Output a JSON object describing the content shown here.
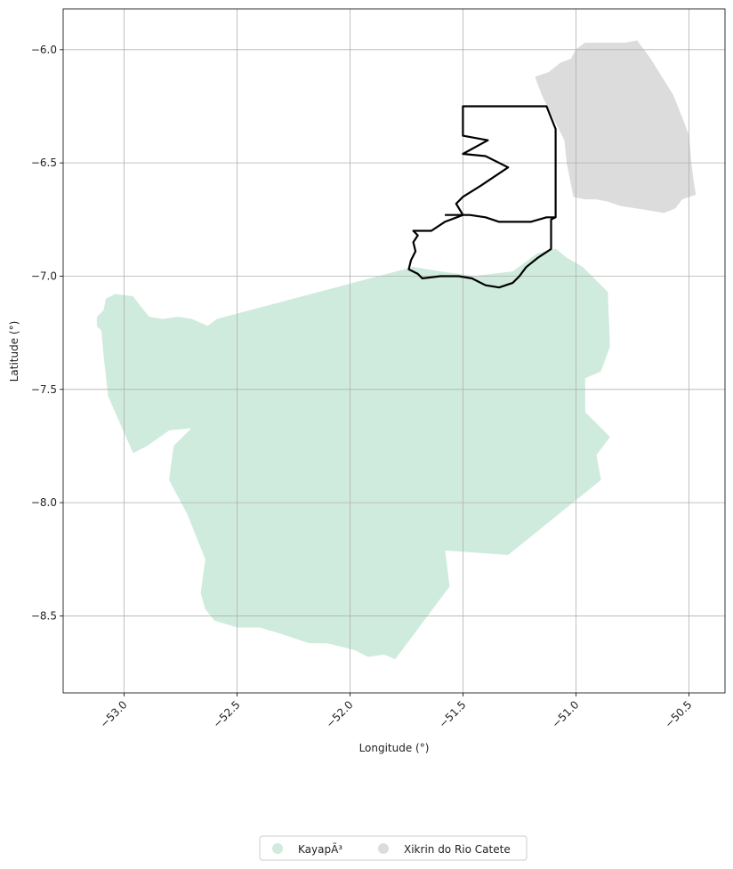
{
  "chart_data": {
    "type": "map",
    "xlabel": "Longitude (°)",
    "ylabel": "Latitude (°)",
    "xlim": [
      -53.27,
      -50.34
    ],
    "ylim": [
      -8.84,
      -5.82
    ],
    "grid": true,
    "legend_placement": "bottom-center",
    "x_ticks": [
      {
        "value": -53.0,
        "label": "−53.0"
      },
      {
        "value": -52.5,
        "label": "−52.5"
      },
      {
        "value": -52.0,
        "label": "−52.0"
      },
      {
        "value": -51.5,
        "label": "−51.5"
      },
      {
        "value": -51.0,
        "label": "−51.0"
      },
      {
        "value": -50.5,
        "label": "−50.5"
      }
    ],
    "y_ticks": [
      {
        "value": -6.0,
        "label": "−6.0"
      },
      {
        "value": -6.5,
        "label": "−6.5"
      },
      {
        "value": -7.0,
        "label": "−7.0"
      },
      {
        "value": -7.5,
        "label": "−7.5"
      },
      {
        "value": -8.0,
        "label": "−8.0"
      },
      {
        "value": -8.5,
        "label": "−8.5"
      }
    ],
    "regions": [
      {
        "name": "KayapÃ³",
        "color": "#cfebdd",
        "coords": [
          [
            -53.1,
            -7.24
          ],
          [
            -53.12,
            -7.22
          ],
          [
            -53.12,
            -7.18
          ],
          [
            -53.09,
            -7.15
          ],
          [
            -53.08,
            -7.1
          ],
          [
            -53.04,
            -7.08
          ],
          [
            -52.96,
            -7.09
          ],
          [
            -52.93,
            -7.13
          ],
          [
            -52.89,
            -7.18
          ],
          [
            -52.83,
            -7.19
          ],
          [
            -52.76,
            -7.18
          ],
          [
            -52.7,
            -7.19
          ],
          [
            -52.63,
            -7.22
          ],
          [
            -52.59,
            -7.19
          ],
          [
            -51.72,
            -6.96
          ],
          [
            -51.6,
            -6.98
          ],
          [
            -51.45,
            -7.0
          ],
          [
            -51.28,
            -6.98
          ],
          [
            -51.17,
            -6.9
          ],
          [
            -51.09,
            -6.88
          ],
          [
            -51.04,
            -6.92
          ],
          [
            -50.97,
            -6.96
          ],
          [
            -50.86,
            -7.07
          ],
          [
            -50.85,
            -7.31
          ],
          [
            -50.89,
            -7.42
          ],
          [
            -50.96,
            -7.45
          ],
          [
            -50.96,
            -7.6
          ],
          [
            -50.85,
            -7.71
          ],
          [
            -50.91,
            -7.79
          ],
          [
            -50.89,
            -7.9
          ],
          [
            -51.3,
            -8.23
          ],
          [
            -51.58,
            -8.21
          ],
          [
            -51.56,
            -8.37
          ],
          [
            -51.8,
            -8.69
          ],
          [
            -51.85,
            -8.67
          ],
          [
            -51.92,
            -8.68
          ],
          [
            -51.98,
            -8.65
          ],
          [
            -52.1,
            -8.62
          ],
          [
            -52.18,
            -8.62
          ],
          [
            -52.3,
            -8.58
          ],
          [
            -52.4,
            -8.55
          ],
          [
            -52.5,
            -8.55
          ],
          [
            -52.6,
            -8.52
          ],
          [
            -52.64,
            -8.47
          ],
          [
            -52.66,
            -8.4
          ],
          [
            -52.64,
            -8.25
          ],
          [
            -52.72,
            -8.05
          ],
          [
            -52.8,
            -7.9
          ],
          [
            -52.78,
            -7.75
          ],
          [
            -52.7,
            -7.67
          ],
          [
            -52.8,
            -7.68
          ],
          [
            -52.9,
            -7.75
          ],
          [
            -52.96,
            -7.78
          ],
          [
            -53.07,
            -7.53
          ],
          [
            -53.09,
            -7.35
          ]
        ]
      },
      {
        "name": "Xikrin do Rio Catete",
        "color": "#dcdcdc",
        "coords": [
          [
            -50.73,
            -5.96
          ],
          [
            -50.78,
            -5.97
          ],
          [
            -50.89,
            -5.97
          ],
          [
            -50.96,
            -5.97
          ],
          [
            -51.0,
            -6.0
          ],
          [
            -51.02,
            -6.04
          ],
          [
            -51.07,
            -6.06
          ],
          [
            -51.12,
            -6.1
          ],
          [
            -51.18,
            -6.12
          ],
          [
            -51.15,
            -6.2
          ],
          [
            -51.1,
            -6.3
          ],
          [
            -51.05,
            -6.4
          ],
          [
            -51.04,
            -6.5
          ],
          [
            -51.02,
            -6.6
          ],
          [
            -51.01,
            -6.65
          ],
          [
            -50.96,
            -6.66
          ],
          [
            -50.91,
            -6.66
          ],
          [
            -50.86,
            -6.67
          ],
          [
            -50.8,
            -6.69
          ],
          [
            -50.73,
            -6.7
          ],
          [
            -50.67,
            -6.71
          ],
          [
            -50.61,
            -6.72
          ],
          [
            -50.56,
            -6.7
          ],
          [
            -50.53,
            -6.66
          ],
          [
            -50.47,
            -6.64
          ],
          [
            -50.48,
            -6.58
          ],
          [
            -50.49,
            -6.5
          ],
          [
            -50.5,
            -6.38
          ],
          [
            -50.53,
            -6.3
          ],
          [
            -50.57,
            -6.2
          ],
          [
            -50.62,
            -6.12
          ],
          [
            -50.67,
            -6.04
          ]
        ]
      }
    ],
    "outline": {
      "color": "#000000",
      "coords": [
        [
          -51.5,
          -6.25
        ],
        [
          -51.43,
          -6.25
        ],
        [
          -51.33,
          -6.25
        ],
        [
          -51.13,
          -6.25
        ],
        [
          -51.09,
          -6.35
        ],
        [
          -51.09,
          -6.6
        ],
        [
          -51.09,
          -6.74
        ],
        [
          -51.11,
          -6.75
        ],
        [
          -51.11,
          -6.88
        ],
        [
          -51.17,
          -6.92
        ],
        [
          -51.22,
          -6.96
        ],
        [
          -51.25,
          -7.0
        ],
        [
          -51.28,
          -7.03
        ],
        [
          -51.34,
          -7.05
        ],
        [
          -51.4,
          -7.04
        ],
        [
          -51.46,
          -7.01
        ],
        [
          -51.52,
          -7.0
        ],
        [
          -51.6,
          -7.0
        ],
        [
          -51.68,
          -7.01
        ],
        [
          -51.7,
          -6.99
        ],
        [
          -51.74,
          -6.97
        ],
        [
          -51.73,
          -6.93
        ],
        [
          -51.71,
          -6.89
        ],
        [
          -51.72,
          -6.85
        ],
        [
          -51.7,
          -6.82
        ],
        [
          -51.72,
          -6.8
        ],
        [
          -51.64,
          -6.8
        ],
        [
          -51.58,
          -6.76
        ],
        [
          -51.5,
          -6.73
        ],
        [
          -51.53,
          -6.68
        ],
        [
          -51.5,
          -6.65
        ],
        [
          -51.42,
          -6.6
        ],
        [
          -51.3,
          -6.52
        ],
        [
          -51.4,
          -6.47
        ],
        [
          -51.5,
          -6.46
        ],
        [
          -51.39,
          -6.4
        ],
        [
          -51.5,
          -6.38
        ]
      ],
      "division": [
        [
          -51.58,
          -6.73
        ],
        [
          -51.47,
          -6.73
        ],
        [
          -51.4,
          -6.74
        ],
        [
          -51.34,
          -6.76
        ],
        [
          -51.2,
          -6.76
        ],
        [
          -51.13,
          -6.74
        ],
        [
          -51.09,
          -6.74
        ]
      ]
    },
    "legend": [
      {
        "label": "KayapÃ³",
        "color": "#cfebdd"
      },
      {
        "label": "Xikrin do Rio Catete",
        "color": "#dcdcdc"
      }
    ]
  }
}
